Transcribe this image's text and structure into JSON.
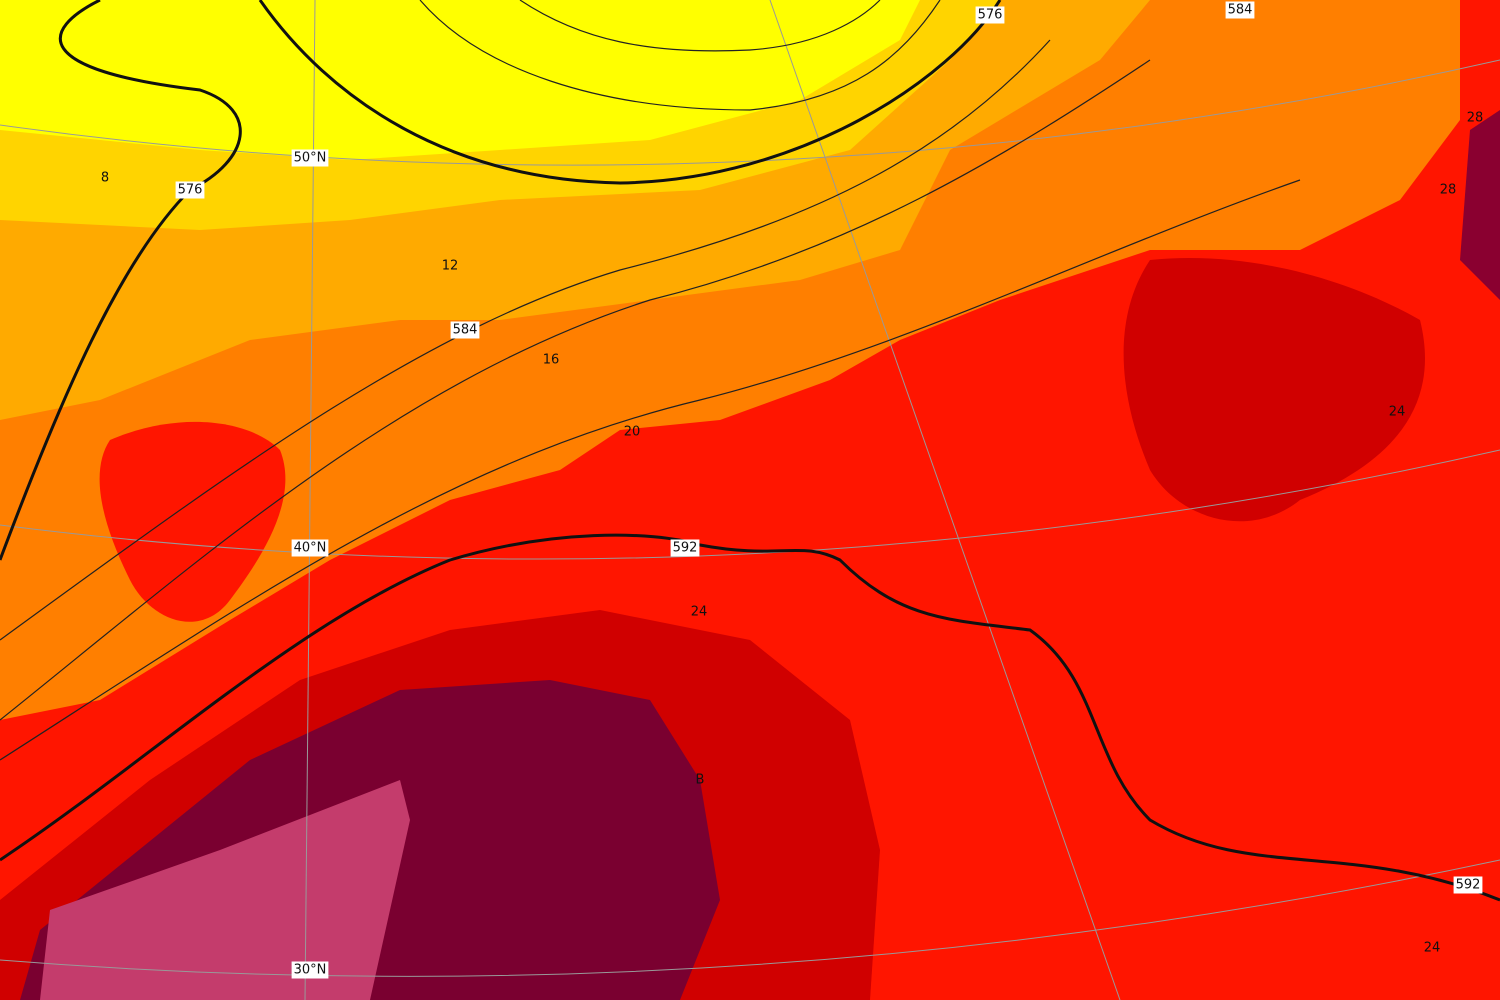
{
  "map": {
    "contour_labels": [
      "576",
      "576",
      "584",
      "584",
      "592",
      "592"
    ],
    "isotherm_labels": [
      "8",
      "12",
      "16",
      "20",
      "24",
      "24",
      "24",
      "28",
      "28"
    ],
    "latitude_labels": [
      "50°N",
      "40°N",
      "30°N"
    ],
    "pressure_centers": [
      "B"
    ]
  }
}
